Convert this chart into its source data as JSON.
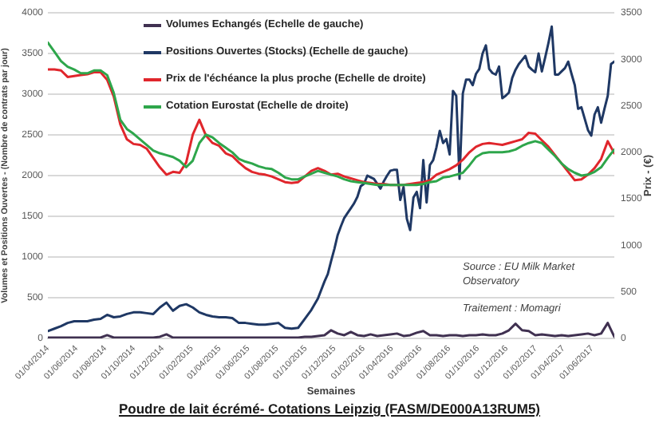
{
  "chart_data": {
    "type": "line",
    "title": "Poudre de lait écrémé- Cotations Leipzig (FASM/DE000A13RUM5)",
    "xlabel": "Semaines",
    "ylabel": "Volumes et Positions Ouvertes - (Nombre de contrats par jour)",
    "y2label": "Prix - (€)",
    "annotations": [
      "Source : EU Milk Market Observatory",
      "Traitement : Momagri"
    ],
    "x": [
      "2014-04-01",
      "2014-04-15",
      "2014-04-29",
      "2014-05-13",
      "2014-05-27",
      "2014-06-10",
      "2014-06-24",
      "2014-07-08",
      "2014-07-22",
      "2014-08-05",
      "2014-08-19",
      "2014-09-02",
      "2014-09-16",
      "2014-09-30",
      "2014-10-14",
      "2014-10-28",
      "2014-11-11",
      "2014-11-25",
      "2014-12-09",
      "2014-12-23",
      "2015-01-06",
      "2015-01-20",
      "2015-02-03",
      "2015-02-17",
      "2015-03-03",
      "2015-03-17",
      "2015-03-31",
      "2015-04-14",
      "2015-04-28",
      "2015-05-12",
      "2015-05-26",
      "2015-06-09",
      "2015-06-23",
      "2015-07-07",
      "2015-07-21",
      "2015-08-04",
      "2015-08-18",
      "2015-09-01",
      "2015-09-15",
      "2015-09-29",
      "2015-10-13",
      "2015-10-27",
      "2015-11-10",
      "2015-11-24",
      "2015-12-08",
      "2015-12-22",
      "2016-01-05",
      "2016-01-19",
      "2016-02-02",
      "2016-02-16",
      "2016-03-01",
      "2016-03-15",
      "2016-03-29",
      "2016-04-12",
      "2016-04-26",
      "2016-05-10",
      "2016-05-24",
      "2016-06-07",
      "2016-06-21",
      "2016-07-05",
      "2016-07-19",
      "2016-08-02",
      "2016-08-16",
      "2016-08-30",
      "2016-09-13",
      "2016-09-27",
      "2016-10-11",
      "2016-10-25",
      "2016-11-08",
      "2016-11-22",
      "2016-12-06",
      "2016-12-20",
      "2017-01-03",
      "2017-01-17",
      "2017-01-31",
      "2017-02-14",
      "2017-02-28",
      "2017-03-14",
      "2017-03-28",
      "2017-04-11",
      "2017-04-25",
      "2017-05-09",
      "2017-05-23",
      "2017-06-06",
      "2017-06-20",
      "2017-07-04",
      "2017-07-18"
    ],
    "series": [
      {
        "name": "Volumes Echangés (Echelle de gauche)",
        "color": "#403151",
        "values": [
          10,
          10,
          10,
          10,
          10,
          10,
          10,
          10,
          10,
          40,
          10,
          10,
          10,
          10,
          10,
          10,
          10,
          20,
          50,
          10,
          10,
          10,
          10,
          10,
          10,
          10,
          10,
          10,
          10,
          10,
          10,
          10,
          10,
          10,
          10,
          10,
          10,
          10,
          10,
          20,
          20,
          30,
          40,
          100,
          60,
          40,
          80,
          40,
          30,
          50,
          30,
          40,
          50,
          60,
          30,
          40,
          70,
          90,
          40,
          40,
          30,
          40,
          40,
          30,
          40,
          40,
          50,
          40,
          40,
          60,
          100,
          180,
          100,
          90,
          40,
          50,
          40,
          30,
          40,
          30,
          40,
          50,
          60,
          40,
          60,
          190,
          20
        ]
      },
      {
        "name": "Positions Ouvertes (Stocks) (Echelle de gauche)",
        "color": "#1f3864",
        "x": [
          "2014-04-01",
          "2014-04-15",
          "2014-04-29",
          "2014-05-13",
          "2014-05-27",
          "2014-06-10",
          "2014-06-24",
          "2014-07-08",
          "2014-07-22",
          "2014-08-05",
          "2014-08-19",
          "2014-09-02",
          "2014-09-16",
          "2014-09-30",
          "2014-10-14",
          "2014-10-28",
          "2014-11-11",
          "2014-11-25",
          "2014-12-09",
          "2014-12-23",
          "2015-01-06",
          "2015-01-20",
          "2015-02-03",
          "2015-02-17",
          "2015-03-03",
          "2015-03-17",
          "2015-03-31",
          "2015-04-14",
          "2015-04-28",
          "2015-05-12",
          "2015-05-26",
          "2015-06-09",
          "2015-06-23",
          "2015-07-07",
          "2015-07-21",
          "2015-08-04",
          "2015-08-18",
          "2015-09-01",
          "2015-09-15",
          "2015-09-29",
          "2015-10-13",
          "2015-10-27",
          "2015-11-10",
          "2015-11-17",
          "2015-11-24",
          "2015-12-01",
          "2015-12-08",
          "2015-12-15",
          "2015-12-22",
          "2015-12-29",
          "2016-01-05",
          "2016-01-12",
          "2016-01-19",
          "2016-01-26",
          "2016-02-02",
          "2016-02-09",
          "2016-02-16",
          "2016-02-23",
          "2016-03-01",
          "2016-03-08",
          "2016-03-15",
          "2016-03-22",
          "2016-03-29",
          "2016-04-05",
          "2016-04-12",
          "2016-04-19",
          "2016-04-26",
          "2016-05-03",
          "2016-05-10",
          "2016-05-17",
          "2016-05-24",
          "2016-05-31",
          "2016-06-07",
          "2016-06-14",
          "2016-06-21",
          "2016-06-28",
          "2016-07-05",
          "2016-07-12",
          "2016-07-19",
          "2016-07-26",
          "2016-08-02",
          "2016-08-09",
          "2016-08-16",
          "2016-08-23",
          "2016-08-30",
          "2016-09-06",
          "2016-09-13",
          "2016-09-20",
          "2016-09-27",
          "2016-10-04",
          "2016-10-11",
          "2016-10-18",
          "2016-10-25",
          "2016-11-01",
          "2016-11-08",
          "2016-11-15",
          "2016-11-22",
          "2016-11-29",
          "2016-12-06",
          "2016-12-13",
          "2016-12-20",
          "2016-12-27",
          "2017-01-03",
          "2017-01-10",
          "2017-01-17",
          "2017-01-24",
          "2017-01-31",
          "2017-02-07",
          "2017-02-14",
          "2017-02-21",
          "2017-02-28",
          "2017-03-07",
          "2017-03-14",
          "2017-03-21",
          "2017-03-28",
          "2017-04-04",
          "2017-04-11",
          "2017-04-18",
          "2017-04-25",
          "2017-05-02",
          "2017-05-09",
          "2017-05-16",
          "2017-05-23",
          "2017-05-30",
          "2017-06-06",
          "2017-06-13",
          "2017-06-20",
          "2017-06-27",
          "2017-07-04",
          "2017-07-11",
          "2017-07-18"
        ],
        "values": [
          90,
          120,
          150,
          190,
          210,
          210,
          210,
          230,
          240,
          290,
          260,
          270,
          300,
          320,
          320,
          310,
          300,
          380,
          440,
          340,
          400,
          420,
          380,
          320,
          290,
          270,
          260,
          260,
          250,
          190,
          190,
          180,
          170,
          170,
          180,
          190,
          130,
          120,
          130,
          240,
          350,
          490,
          700,
          790,
          950,
          1100,
          1270,
          1380,
          1480,
          1540,
          1600,
          1660,
          1740,
          1870,
          1900,
          2000,
          1980,
          1960,
          1900,
          1840,
          1930,
          2000,
          2060,
          2070,
          2070,
          1700,
          1860,
          1470,
          1330,
          1730,
          1800,
          1600,
          2190,
          1670,
          2130,
          2190,
          2350,
          2550,
          2400,
          2450,
          2260,
          3040,
          2980,
          1960,
          3010,
          3180,
          3180,
          3110,
          3250,
          3310,
          3500,
          3600,
          3310,
          3260,
          3240,
          3340,
          2950,
          2980,
          3020,
          3200,
          3300,
          3370,
          3420,
          3470,
          3340,
          3300,
          3270,
          3500,
          3280,
          3450,
          3630,
          3830,
          3240,
          3240,
          3280,
          3320,
          3400,
          3250,
          3110,
          2820,
          2840,
          2700,
          2560,
          2490,
          2750,
          2840,
          2650,
          2820,
          2980,
          3370,
          3400
        ]
      },
      {
        "name": "Prix de l'échéance la plus proche (Echelle de droite)",
        "color": "#e0262c",
        "axis": "y2",
        "values": [
          2890,
          2890,
          2880,
          2810,
          2820,
          2830,
          2840,
          2860,
          2860,
          2780,
          2600,
          2300,
          2140,
          2090,
          2080,
          2040,
          1940,
          1840,
          1760,
          1790,
          1780,
          1890,
          2190,
          2350,
          2180,
          2100,
          2070,
          1990,
          1960,
          1890,
          1830,
          1790,
          1770,
          1760,
          1740,
          1710,
          1680,
          1670,
          1680,
          1740,
          1800,
          1830,
          1800,
          1760,
          1770,
          1740,
          1720,
          1700,
          1680,
          1670,
          1660,
          1660,
          1650,
          1650,
          1650,
          1660,
          1670,
          1680,
          1700,
          1760,
          1790,
          1820,
          1860,
          1920,
          2000,
          2060,
          2090,
          2100,
          2090,
          2080,
          2100,
          2120,
          2140,
          2210,
          2200,
          2130,
          2060,
          1970,
          1880,
          1790,
          1700,
          1710,
          1760,
          1830,
          1930,
          2120,
          1990
        ]
      },
      {
        "name": "Cotation Eurostat (Echelle de droite)",
        "color": "#2ea64b",
        "axis": "y2",
        "values": [
          3180,
          3080,
          2980,
          2920,
          2890,
          2850,
          2850,
          2880,
          2880,
          2830,
          2640,
          2350,
          2250,
          2200,
          2140,
          2080,
          2020,
          1990,
          1970,
          1950,
          1910,
          1840,
          1910,
          2100,
          2190,
          2160,
          2100,
          2050,
          2000,
          1930,
          1900,
          1880,
          1850,
          1830,
          1820,
          1780,
          1730,
          1710,
          1710,
          1740,
          1770,
          1800,
          1780,
          1760,
          1740,
          1710,
          1690,
          1680,
          1670,
          1660,
          1650,
          1650,
          1650,
          1650,
          1650,
          1650,
          1650,
          1660,
          1680,
          1690,
          1730,
          1740,
          1760,
          1780,
          1860,
          1950,
          1990,
          2000,
          2000,
          2000,
          2010,
          2030,
          2070,
          2100,
          2120,
          2100,
          2030,
          1960,
          1880,
          1820,
          1780,
          1750,
          1760,
          1790,
          1840,
          1940,
          2030
        ]
      }
    ],
    "xlim": [
      "2014-04-01",
      "2017-07-18"
    ],
    "xticks": [
      {
        "value": "2014-04-01",
        "label": "01/04/2014"
      },
      {
        "value": "2014-06-01",
        "label": "01/06/2014"
      },
      {
        "value": "2014-08-01",
        "label": "01/08/2014"
      },
      {
        "value": "2014-10-01",
        "label": "01/10/2014"
      },
      {
        "value": "2014-12-01",
        "label": "01/12/2014"
      },
      {
        "value": "2015-02-01",
        "label": "01/02/2015"
      },
      {
        "value": "2015-04-01",
        "label": "01/04/2015"
      },
      {
        "value": "2015-06-01",
        "label": "01/06/2015"
      },
      {
        "value": "2015-08-01",
        "label": "01/08/2015"
      },
      {
        "value": "2015-10-01",
        "label": "01/10/2015"
      },
      {
        "value": "2015-12-01",
        "label": "01/12/2015"
      },
      {
        "value": "2016-02-01",
        "label": "01/02/2016"
      },
      {
        "value": "2016-04-01",
        "label": "01/04/2016"
      },
      {
        "value": "2016-06-01",
        "label": "01/06/2016"
      },
      {
        "value": "2016-08-01",
        "label": "01/08/2016"
      },
      {
        "value": "2016-10-01",
        "label": "01/10/2016"
      },
      {
        "value": "2016-12-01",
        "label": "01/12/2016"
      },
      {
        "value": "2017-02-01",
        "label": "01/02/2017"
      },
      {
        "value": "2017-04-01",
        "label": "01/04/2017"
      },
      {
        "value": "2017-06-01",
        "label": "01/06/2017"
      }
    ],
    "ylim": [
      0,
      4000
    ],
    "yticks": [
      0,
      500,
      1000,
      1500,
      2000,
      2500,
      3000,
      3500,
      4000
    ],
    "y2lim": [
      0,
      3500
    ],
    "y2ticks": [
      0,
      500,
      1000,
      1500,
      2000,
      2500,
      3000,
      3500
    ],
    "grid": "y",
    "legend": "top left"
  }
}
